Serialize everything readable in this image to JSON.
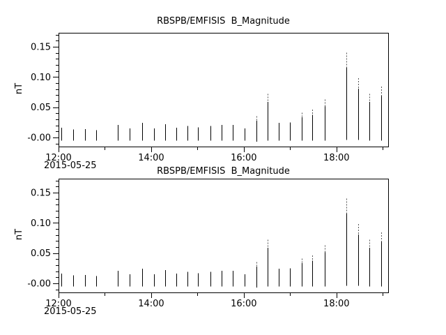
{
  "window": {
    "background": "#ffffff",
    "foreground": "#000000"
  },
  "chart_data": [
    {
      "type": "bar",
      "title": "RBSPB/EMFISIS  B_Magnitude",
      "ylabel": "nT",
      "date_label": "2015-05-25",
      "x_unit": "minutes after 2015-05-25 12:00",
      "xlim": [
        0,
        427
      ],
      "ylim": [
        -0.015,
        0.173
      ],
      "x_major_ticks": [
        {
          "t": 0,
          "label": "12:00"
        },
        {
          "t": 120,
          "label": "14:00"
        },
        {
          "t": 240,
          "label": "16:00"
        },
        {
          "t": 360,
          "label": "18:00"
        }
      ],
      "x_minor_ticks": [
        60,
        180,
        300,
        420
      ],
      "y_major_ticks": [
        {
          "v": 0.0,
          "label": "-0.00"
        },
        {
          "v": 0.05,
          "label": "0.05"
        },
        {
          "v": 0.1,
          "label": "0.10"
        },
        {
          "v": 0.15,
          "label": "0.15"
        }
      ],
      "y_minor_step": 0.01,
      "spikes": [
        {
          "t": 4,
          "min": -0.005,
          "max": 0.016
        },
        {
          "t": 19,
          "min": -0.005,
          "max": 0.013
        },
        {
          "t": 34,
          "min": -0.005,
          "max": 0.014
        },
        {
          "t": 49,
          "min": -0.005,
          "max": 0.012
        },
        {
          "t": 77,
          "min": -0.005,
          "max": 0.021
        },
        {
          "t": 92,
          "min": -0.005,
          "max": 0.015
        },
        {
          "t": 108,
          "min": -0.005,
          "max": 0.024
        },
        {
          "t": 124,
          "min": -0.005,
          "max": 0.015
        },
        {
          "t": 138,
          "min": -0.005,
          "max": 0.022
        },
        {
          "t": 153,
          "min": -0.005,
          "max": 0.016
        },
        {
          "t": 167,
          "min": -0.005,
          "max": 0.019
        },
        {
          "t": 181,
          "min": -0.005,
          "max": 0.017
        },
        {
          "t": 197,
          "min": -0.005,
          "max": 0.019
        },
        {
          "t": 211,
          "min": -0.005,
          "max": 0.021
        },
        {
          "t": 226,
          "min": -0.005,
          "max": 0.021
        },
        {
          "t": 241,
          "min": -0.005,
          "max": 0.015
        },
        {
          "t": 256,
          "min": -0.007,
          "max": 0.035
        },
        {
          "t": 271,
          "min": -0.005,
          "max": 0.072
        },
        {
          "t": 285,
          "min": -0.005,
          "max": 0.024
        },
        {
          "t": 300,
          "min": -0.005,
          "max": 0.025
        },
        {
          "t": 315,
          "min": -0.005,
          "max": 0.041
        },
        {
          "t": 329,
          "min": -0.005,
          "max": 0.046
        },
        {
          "t": 345,
          "min": -0.005,
          "max": 0.063
        },
        {
          "t": 373,
          "min": -0.004,
          "max": 0.14
        },
        {
          "t": 388,
          "min": -0.004,
          "max": 0.098
        },
        {
          "t": 403,
          "min": -0.005,
          "max": 0.072
        },
        {
          "t": 418,
          "min": -0.005,
          "max": 0.084
        }
      ]
    },
    {
      "type": "bar",
      "title": "RBSPB/EMFISIS  B_Magnitude",
      "ylabel": "nT",
      "date_label": "2015-05-25",
      "x_unit": "minutes after 2015-05-25 12:00",
      "xlim": [
        0,
        427
      ],
      "ylim": [
        -0.015,
        0.173
      ],
      "x_major_ticks": [
        {
          "t": 0,
          "label": "12:00"
        },
        {
          "t": 120,
          "label": "14:00"
        },
        {
          "t": 240,
          "label": "16:00"
        },
        {
          "t": 360,
          "label": "18:00"
        }
      ],
      "x_minor_ticks": [
        60,
        180,
        300,
        420
      ],
      "y_major_ticks": [
        {
          "v": 0.0,
          "label": "-0.00"
        },
        {
          "v": 0.05,
          "label": "0.05"
        },
        {
          "v": 0.1,
          "label": "0.10"
        },
        {
          "v": 0.15,
          "label": "0.15"
        }
      ],
      "y_minor_step": 0.01,
      "spikes": [
        {
          "t": 4,
          "min": -0.005,
          "max": 0.016
        },
        {
          "t": 19,
          "min": -0.005,
          "max": 0.013
        },
        {
          "t": 34,
          "min": -0.005,
          "max": 0.014
        },
        {
          "t": 49,
          "min": -0.005,
          "max": 0.012
        },
        {
          "t": 77,
          "min": -0.005,
          "max": 0.021
        },
        {
          "t": 92,
          "min": -0.005,
          "max": 0.015
        },
        {
          "t": 108,
          "min": -0.005,
          "max": 0.024
        },
        {
          "t": 124,
          "min": -0.005,
          "max": 0.015
        },
        {
          "t": 138,
          "min": -0.005,
          "max": 0.022
        },
        {
          "t": 153,
          "min": -0.005,
          "max": 0.016
        },
        {
          "t": 167,
          "min": -0.005,
          "max": 0.019
        },
        {
          "t": 181,
          "min": -0.005,
          "max": 0.017
        },
        {
          "t": 197,
          "min": -0.005,
          "max": 0.019
        },
        {
          "t": 211,
          "min": -0.005,
          "max": 0.021
        },
        {
          "t": 226,
          "min": -0.005,
          "max": 0.021
        },
        {
          "t": 241,
          "min": -0.005,
          "max": 0.015
        },
        {
          "t": 256,
          "min": -0.007,
          "max": 0.035
        },
        {
          "t": 271,
          "min": -0.005,
          "max": 0.072
        },
        {
          "t": 285,
          "min": -0.005,
          "max": 0.024
        },
        {
          "t": 300,
          "min": -0.005,
          "max": 0.025
        },
        {
          "t": 315,
          "min": -0.005,
          "max": 0.041
        },
        {
          "t": 329,
          "min": -0.005,
          "max": 0.046
        },
        {
          "t": 345,
          "min": -0.005,
          "max": 0.063
        },
        {
          "t": 373,
          "min": -0.004,
          "max": 0.14
        },
        {
          "t": 388,
          "min": -0.004,
          "max": 0.098
        },
        {
          "t": 403,
          "min": -0.005,
          "max": 0.072
        },
        {
          "t": 418,
          "min": -0.005,
          "max": 0.084
        }
      ]
    }
  ]
}
